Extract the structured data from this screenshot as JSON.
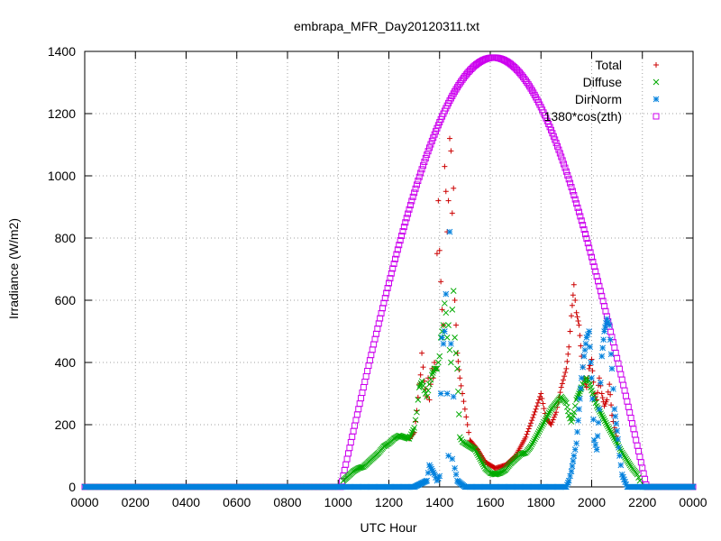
{
  "chart_data": {
    "type": "scatter",
    "title": "embrapa_MFR_Day20120311.txt",
    "xlabel": "UTC Hour",
    "ylabel": "Irradiance (W/m2)",
    "xlim": [
      0,
      24
    ],
    "ylim": [
      0,
      1400
    ],
    "x_ticks": [
      0,
      2,
      4,
      6,
      8,
      10,
      12,
      14,
      16,
      18,
      20,
      22,
      24
    ],
    "x_tick_labels": [
      "0000",
      "0200",
      "0400",
      "0600",
      "0800",
      "1000",
      "1200",
      "1400",
      "1600",
      "1800",
      "2000",
      "2200",
      "0000"
    ],
    "y_ticks": [
      0,
      200,
      400,
      600,
      800,
      1000,
      1200,
      1400
    ],
    "grid": true,
    "legend_position": "top-right",
    "series": [
      {
        "name": "Total",
        "marker": "plus",
        "color": "#cc0000",
        "points": [
          [
            12.8,
            155
          ],
          [
            13.0,
            175
          ],
          [
            13.1,
            245
          ],
          [
            13.2,
            330
          ],
          [
            13.25,
            360
          ],
          [
            13.3,
            430
          ],
          [
            13.4,
            340
          ],
          [
            13.5,
            290
          ],
          [
            13.55,
            350
          ],
          [
            13.6,
            280
          ],
          [
            13.7,
            380
          ],
          [
            13.75,
            350
          ],
          [
            13.8,
            400
          ],
          [
            13.85,
            380
          ],
          [
            13.9,
            750
          ],
          [
            13.95,
            920
          ],
          [
            14.0,
            760
          ],
          [
            14.05,
            660
          ],
          [
            14.1,
            570
          ],
          [
            14.15,
            520
          ],
          [
            14.2,
            1030
          ],
          [
            14.25,
            950
          ],
          [
            14.3,
            820
          ],
          [
            14.35,
            920
          ],
          [
            14.4,
            1120
          ],
          [
            14.45,
            1080
          ],
          [
            14.5,
            880
          ],
          [
            14.55,
            960
          ],
          [
            14.6,
            600
          ],
          [
            14.65,
            520
          ],
          [
            14.7,
            430
          ],
          [
            14.8,
            350
          ],
          [
            14.9,
            300
          ],
          [
            15.0,
            250
          ],
          [
            15.1,
            200
          ],
          [
            15.2,
            150
          ],
          [
            15.5,
            120
          ],
          [
            15.8,
            80
          ],
          [
            16.2,
            60
          ],
          [
            16.6,
            70
          ],
          [
            17.0,
            100
          ],
          [
            17.4,
            160
          ],
          [
            17.8,
            250
          ],
          [
            18.0,
            300
          ],
          [
            18.2,
            220
          ],
          [
            18.4,
            200
          ],
          [
            18.6,
            240
          ],
          [
            18.8,
            320
          ],
          [
            19.0,
            380
          ],
          [
            19.1,
            450
          ],
          [
            19.2,
            550
          ],
          [
            19.3,
            650
          ],
          [
            19.35,
            600
          ],
          [
            19.4,
            560
          ],
          [
            19.5,
            520
          ],
          [
            19.6,
            420
          ],
          [
            19.7,
            350
          ],
          [
            19.8,
            320
          ],
          [
            19.9,
            380
          ],
          [
            20.0,
            410
          ],
          [
            20.1,
            300
          ],
          [
            20.2,
            280
          ],
          [
            20.3,
            350
          ],
          [
            20.4,
            300
          ],
          [
            20.5,
            260
          ],
          [
            20.6,
            280
          ],
          [
            20.7,
            330
          ],
          [
            20.8,
            230
          ],
          [
            20.9,
            190
          ],
          [
            21.0,
            150
          ]
        ]
      },
      {
        "name": "Diffuse",
        "marker": "cross",
        "color": "#00aa00",
        "points": [
          [
            10.2,
            20
          ],
          [
            10.4,
            35
          ],
          [
            10.6,
            50
          ],
          [
            10.8,
            60
          ],
          [
            11.0,
            65
          ],
          [
            11.2,
            80
          ],
          [
            11.4,
            95
          ],
          [
            11.6,
            110
          ],
          [
            11.8,
            130
          ],
          [
            12.0,
            140
          ],
          [
            12.2,
            155
          ],
          [
            12.4,
            165
          ],
          [
            12.6,
            160
          ],
          [
            12.8,
            155
          ],
          [
            13.0,
            190
          ],
          [
            13.1,
            240
          ],
          [
            13.2,
            320
          ],
          [
            13.3,
            340
          ],
          [
            13.4,
            310
          ],
          [
            13.5,
            290
          ],
          [
            13.6,
            330
          ],
          [
            13.7,
            360
          ],
          [
            13.8,
            380
          ],
          [
            13.9,
            380
          ],
          [
            14.0,
            420
          ],
          [
            14.05,
            480
          ],
          [
            14.1,
            500
          ],
          [
            14.15,
            520
          ],
          [
            14.2,
            590
          ],
          [
            14.25,
            560
          ],
          [
            14.3,
            480
          ],
          [
            14.35,
            520
          ],
          [
            14.4,
            440
          ],
          [
            14.45,
            400
          ],
          [
            14.5,
            570
          ],
          [
            14.55,
            630
          ],
          [
            14.6,
            480
          ],
          [
            14.7,
            380
          ],
          [
            14.8,
            160
          ],
          [
            14.9,
            145
          ],
          [
            15.0,
            140
          ],
          [
            15.2,
            130
          ],
          [
            15.4,
            120
          ],
          [
            15.6,
            90
          ],
          [
            15.8,
            60
          ],
          [
            16.0,
            45
          ],
          [
            16.2,
            40
          ],
          [
            16.4,
            45
          ],
          [
            16.6,
            55
          ],
          [
            16.8,
            75
          ],
          [
            17.0,
            90
          ],
          [
            17.2,
            105
          ],
          [
            17.4,
            110
          ],
          [
            17.6,
            130
          ],
          [
            17.8,
            160
          ],
          [
            18.0,
            190
          ],
          [
            18.2,
            220
          ],
          [
            18.4,
            250
          ],
          [
            18.6,
            270
          ],
          [
            18.8,
            290
          ],
          [
            19.0,
            270
          ],
          [
            19.1,
            230
          ],
          [
            19.2,
            210
          ],
          [
            19.3,
            240
          ],
          [
            19.4,
            280
          ],
          [
            19.5,
            300
          ],
          [
            19.6,
            320
          ],
          [
            19.7,
            340
          ],
          [
            19.8,
            350
          ],
          [
            19.9,
            340
          ],
          [
            20.0,
            310
          ],
          [
            20.2,
            260
          ],
          [
            20.4,
            230
          ],
          [
            20.6,
            200
          ],
          [
            20.8,
            170
          ],
          [
            21.0,
            140
          ],
          [
            21.2,
            110
          ],
          [
            21.4,
            85
          ],
          [
            21.6,
            60
          ],
          [
            21.8,
            40
          ],
          [
            21.9,
            20
          ]
        ]
      },
      {
        "name": "DirNorm",
        "marker": "star",
        "color": "#0080dd",
        "points": [
          [
            10.0,
            0
          ],
          [
            11.0,
            0
          ],
          [
            12.0,
            0
          ],
          [
            13.0,
            0
          ],
          [
            13.5,
            20
          ],
          [
            13.6,
            70
          ],
          [
            13.8,
            40
          ],
          [
            13.9,
            20
          ],
          [
            14.0,
            35
          ],
          [
            14.05,
            300
          ],
          [
            14.1,
            480
          ],
          [
            14.15,
            460
          ],
          [
            14.2,
            500
          ],
          [
            14.25,
            620
          ],
          [
            14.3,
            300
          ],
          [
            14.35,
            100
          ],
          [
            14.4,
            820
          ],
          [
            14.45,
            460
          ],
          [
            14.5,
            90
          ],
          [
            14.55,
            290
          ],
          [
            14.6,
            60
          ],
          [
            14.7,
            20
          ],
          [
            15.0,
            0
          ],
          [
            16.0,
            0
          ],
          [
            17.0,
            0
          ],
          [
            18.0,
            0
          ],
          [
            19.0,
            0
          ],
          [
            19.1,
            20
          ],
          [
            19.2,
            50
          ],
          [
            19.3,
            100
          ],
          [
            19.4,
            140
          ],
          [
            19.5,
            250
          ],
          [
            19.6,
            350
          ],
          [
            19.7,
            420
          ],
          [
            19.8,
            480
          ],
          [
            19.9,
            500
          ],
          [
            20.0,
            350
          ],
          [
            20.1,
            150
          ],
          [
            20.2,
            120
          ],
          [
            20.3,
            250
          ],
          [
            20.4,
            420
          ],
          [
            20.5,
            500
          ],
          [
            20.6,
            540
          ],
          [
            20.7,
            520
          ],
          [
            20.8,
            380
          ],
          [
            20.9,
            250
          ],
          [
            21.0,
            180
          ],
          [
            21.1,
            100
          ],
          [
            21.2,
            40
          ],
          [
            21.4,
            0
          ],
          [
            22.0,
            0
          ],
          [
            23.0,
            0
          ],
          [
            24.0,
            0
          ]
        ]
      },
      {
        "name": "1380*cos(zth)",
        "marker": "square",
        "color": "#cc00ee",
        "curve": {
          "amplitude": 1380,
          "rise": 10.1,
          "set": 22.17,
          "step": 0.05
        }
      }
    ]
  }
}
